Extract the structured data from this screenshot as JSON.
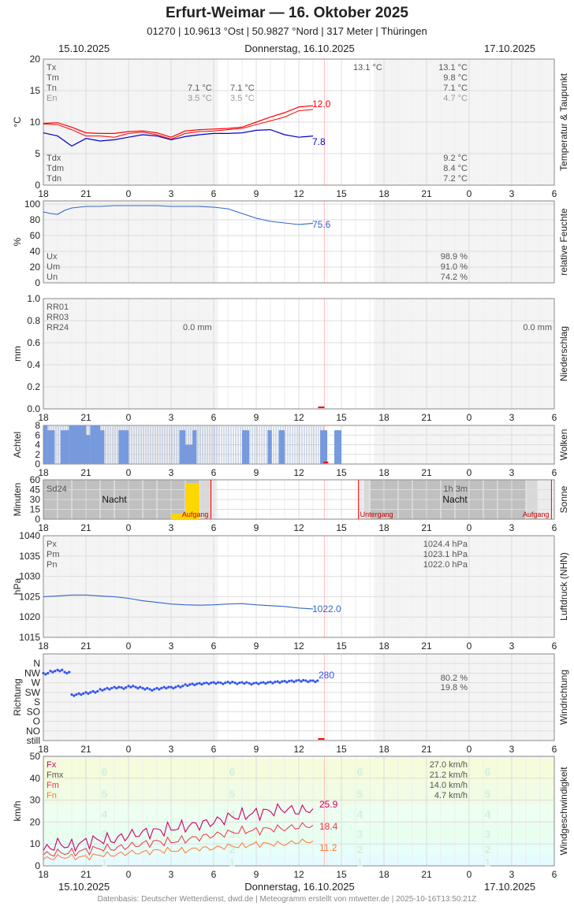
{
  "header": {
    "title": "Erfurt-Weimar  —  16. Oktober 2025",
    "subtitle": "01270  |  10.9613 °Ost  |  50.9827 °Nord  |  317 Meter  |  Thüringen"
  },
  "dates": {
    "left": "15.10.2025",
    "center": "Donnerstag, 16.10.2025",
    "right": "17.10.2025"
  },
  "footer": "Datenbasis: Deutscher Wetterdienst, dwd.de | Meteogramm erstellt von mtwetter.de | 2025-10-16T13:50:21Z",
  "colors": {
    "temp": "#ff0000",
    "dew": "#0000cc",
    "humidity": "#3366cc",
    "cloud": "#7799dd",
    "sun": "#ffd700",
    "night": "#c0c0c0",
    "pressure": "#3366cc",
    "dir": "#3355ee",
    "gust": "#cc0066",
    "mean": "#ee3344",
    "min": "#ff7733",
    "grid": "#dddddd"
  },
  "x_hours": [
    "18",
    "21",
    "0",
    "3",
    "6",
    "9",
    "12",
    "15",
    "18",
    "21",
    "0",
    "3",
    "6"
  ],
  "chart_data": [
    {
      "type": "line",
      "id": "temperature",
      "side_label": "Temperatur & Taupunkt",
      "ylabel": "°C",
      "ylim": [
        0,
        20
      ],
      "yticks": [
        "0",
        "5",
        "10",
        "15",
        "20"
      ],
      "legend_top": [
        "Tx",
        "Tm",
        "Tn",
        "En"
      ],
      "legend_bottom": [
        "Tdx",
        "Tdm",
        "Tdn"
      ],
      "day1_vals": [
        "7.1 °C",
        "3.5 °C"
      ],
      "day1_vals_b": [
        "7.1 °C",
        "3.5 °C"
      ],
      "day2_tx_label": "13.1 °C",
      "day2_vals": [
        "13.1 °C",
        "9.8 °C",
        "7.1 °C",
        "4.7 °C"
      ],
      "day2_dew_vals": [
        "9.2 °C",
        "8.4 °C",
        "7.2 °C"
      ],
      "end_labels": [
        "12.0",
        "7.8"
      ],
      "series": [
        {
          "name": "Tx",
          "x": [
            0,
            1,
            2,
            3,
            4,
            5,
            6,
            7,
            8,
            9,
            10,
            11,
            12,
            13,
            14,
            15,
            16,
            17,
            18,
            19
          ],
          "values": [
            9.8,
            9.9,
            9.2,
            8.3,
            8.2,
            8.2,
            8.5,
            8.6,
            8.3,
            7.6,
            8.6,
            8.8,
            8.9,
            9.0,
            9.2,
            10.0,
            10.8,
            11.5,
            12.4,
            12.6
          ]
        },
        {
          "name": "Tm",
          "x": [
            0,
            1,
            2,
            3,
            4,
            5,
            6,
            7,
            8,
            9,
            10,
            11,
            12,
            13,
            14,
            15,
            16,
            17,
            18,
            19
          ],
          "values": [
            9.7,
            9.6,
            8.8,
            7.8,
            7.8,
            7.6,
            8.2,
            8.4,
            8.0,
            7.3,
            8.2,
            8.5,
            8.6,
            8.8,
            9.0,
            9.6,
            10.2,
            10.8,
            11.8,
            12.0
          ]
        },
        {
          "name": "Td",
          "x": [
            0,
            1,
            2,
            3,
            4,
            5,
            6,
            7,
            8,
            9,
            10,
            11,
            12,
            13,
            14,
            15,
            16,
            17,
            18,
            19
          ],
          "values": [
            8.3,
            7.8,
            6.2,
            7.4,
            7.0,
            7.2,
            7.6,
            8.0,
            7.8,
            7.2,
            7.7,
            8.0,
            8.2,
            8.2,
            8.3,
            8.7,
            8.8,
            8.0,
            7.6,
            7.8
          ]
        }
      ]
    },
    {
      "type": "line",
      "id": "humidity",
      "side_label": "relative Feuchte",
      "ylabel": "%",
      "ylim": [
        0,
        100
      ],
      "yticks": [
        "0",
        "20",
        "40",
        "60",
        "80",
        "100"
      ],
      "legend": [
        "Ux",
        "Um",
        "Un"
      ],
      "day2_vals": [
        "98.9 %",
        "91.0 %",
        "74.2 %"
      ],
      "end_label": "75.6",
      "series": [
        {
          "name": "U",
          "x": [
            0,
            0.5,
            1,
            1.5,
            2,
            3,
            4,
            5,
            6,
            7,
            8,
            9,
            10,
            11,
            12,
            13,
            14,
            15,
            16,
            17,
            18,
            19
          ],
          "values": [
            90,
            88,
            87,
            92,
            95,
            97,
            97,
            98,
            98,
            98,
            98,
            97,
            97,
            97,
            96,
            94,
            88,
            82,
            78,
            76,
            74,
            75.6
          ]
        }
      ]
    },
    {
      "type": "bar",
      "id": "precipitation",
      "side_label": "Niederschlag",
      "ylabel": "mm",
      "ylim": [
        0,
        1.0
      ],
      "yticks": [
        "0.0",
        "0.2",
        "0.4",
        "0.6",
        "0.8",
        "1.0"
      ],
      "legend": [
        "RR01",
        "RR03",
        "RR24"
      ],
      "day1_total": "0.0 mm",
      "day2_total": "0.0 mm"
    },
    {
      "type": "bar",
      "id": "clouds",
      "side_label": "Wolken",
      "ylabel": "Achtel",
      "ylim": [
        0,
        8
      ],
      "yticks": [
        "0",
        "2",
        "4",
        "6",
        "8"
      ]
    },
    {
      "type": "bar",
      "id": "sunshine",
      "side_label": "Sonne",
      "ylabel": "Minuten",
      "ylim": [
        0,
        60
      ],
      "yticks": [
        "0",
        "15",
        "30",
        "45",
        "60"
      ],
      "legend": "Sd24",
      "day2_total": "1h 3m",
      "night_label": "Nacht",
      "sunrise_label": "Aufgang",
      "sunset_label": "Untergang",
      "bars": [
        {
          "hour": 9,
          "minutes": 8
        },
        {
          "hour": 10,
          "minutes": 55
        }
      ]
    },
    {
      "type": "line",
      "id": "pressure",
      "side_label": "Luftdruck (NHN)",
      "ylabel": "hPa",
      "ylim": [
        1015,
        1040
      ],
      "yticks": [
        "1015",
        "1020",
        "1025",
        "1030",
        "1035",
        "1040"
      ],
      "legend": [
        "Px",
        "Pm",
        "Pn"
      ],
      "day2_vals": [
        "1024.4 hPa",
        "1023.1 hPa",
        "1022.0 hPa"
      ],
      "end_label": "1022.0",
      "series": [
        {
          "name": "P",
          "x": [
            0,
            1,
            2,
            3,
            4,
            5,
            6,
            7,
            8,
            9,
            10,
            11,
            12,
            13,
            14,
            15,
            16,
            17,
            18,
            19
          ],
          "values": [
            1025.0,
            1025.2,
            1025.4,
            1025.4,
            1025.2,
            1025.0,
            1024.6,
            1024.0,
            1023.6,
            1023.2,
            1023.0,
            1022.9,
            1023.0,
            1023.2,
            1023.3,
            1023.0,
            1022.8,
            1022.6,
            1022.2,
            1022.0
          ]
        }
      ]
    },
    {
      "type": "scatter",
      "id": "direction",
      "side_label": "Windrichtung",
      "ylabel": "Richtung",
      "ylim": [
        0,
        9
      ],
      "yticks": [
        "still",
        "NO",
        "O",
        "SO",
        "S",
        "SW",
        "W",
        "NW",
        "N"
      ],
      "day2_vals": [
        "80.2 %",
        "19.8 %"
      ],
      "end_label": "280",
      "series": [
        {
          "name": "dir",
          "x": [
            0,
            0.5,
            1,
            1.5,
            2,
            2.5,
            3,
            3.5,
            4,
            4.5,
            5,
            5.5,
            6,
            6.5,
            7,
            7.5,
            8,
            8.5,
            9,
            9.5,
            10,
            10.5,
            11,
            11.5,
            12,
            12.5,
            13,
            13.5,
            14,
            14.5,
            15,
            15.5,
            16,
            16.5,
            17,
            17.5,
            18,
            18.5,
            19
          ],
          "values": [
            315,
            325,
            330,
            320,
            215,
            220,
            225,
            230,
            240,
            245,
            250,
            248,
            255,
            250,
            245,
            240,
            245,
            250,
            250,
            255,
            262,
            265,
            268,
            270,
            272,
            270,
            274,
            270,
            272,
            268,
            270,
            272,
            274,
            276,
            278,
            280,
            282,
            280,
            280
          ]
        }
      ]
    },
    {
      "type": "line",
      "id": "wind",
      "side_label": "Windgeschwindigkeit",
      "ylabel": "km/h",
      "ylim": [
        0,
        50
      ],
      "yticks": [
        "0",
        "10",
        "20",
        "30",
        "40",
        "50"
      ],
      "legend": [
        "Fx",
        "Fmx",
        "Fm",
        "Fn"
      ],
      "day2_vals": [
        "27.0 km/h",
        "21.2 km/h",
        "14.0 km/h",
        "4.7 km/h"
      ],
      "bft_labels": [
        "1",
        "2",
        "3",
        "4",
        "5",
        "6"
      ],
      "end_labels": [
        "25.9",
        "18.4",
        "11.2"
      ],
      "series": [
        {
          "name": "Fx",
          "x": [
            0,
            1,
            2,
            3,
            4,
            5,
            6,
            7,
            8,
            9,
            10,
            11,
            12,
            13,
            14,
            15,
            16,
            17,
            18,
            19
          ],
          "values": [
            7,
            10,
            9,
            11,
            12,
            12,
            14,
            15,
            16,
            17,
            18,
            19,
            20,
            22,
            23,
            24,
            25,
            26,
            25,
            25.9
          ]
        },
        {
          "name": "Fm",
          "x": [
            0,
            1,
            2,
            3,
            4,
            5,
            6,
            7,
            8,
            9,
            10,
            11,
            12,
            13,
            14,
            15,
            16,
            17,
            18,
            19
          ],
          "values": [
            5,
            6,
            6,
            7,
            8,
            8,
            9,
            10,
            11,
            11,
            12,
            13,
            14,
            15,
            16,
            16,
            17,
            17,
            18,
            18.4
          ]
        },
        {
          "name": "Fn",
          "x": [
            0,
            1,
            2,
            3,
            4,
            5,
            6,
            7,
            8,
            9,
            10,
            11,
            12,
            13,
            14,
            15,
            16,
            17,
            18,
            19
          ],
          "values": [
            3,
            4,
            4,
            4,
            5,
            5,
            6,
            6,
            7,
            7,
            7,
            8,
            8,
            9,
            9,
            10,
            10,
            10,
            11,
            11.2
          ]
        }
      ]
    }
  ]
}
